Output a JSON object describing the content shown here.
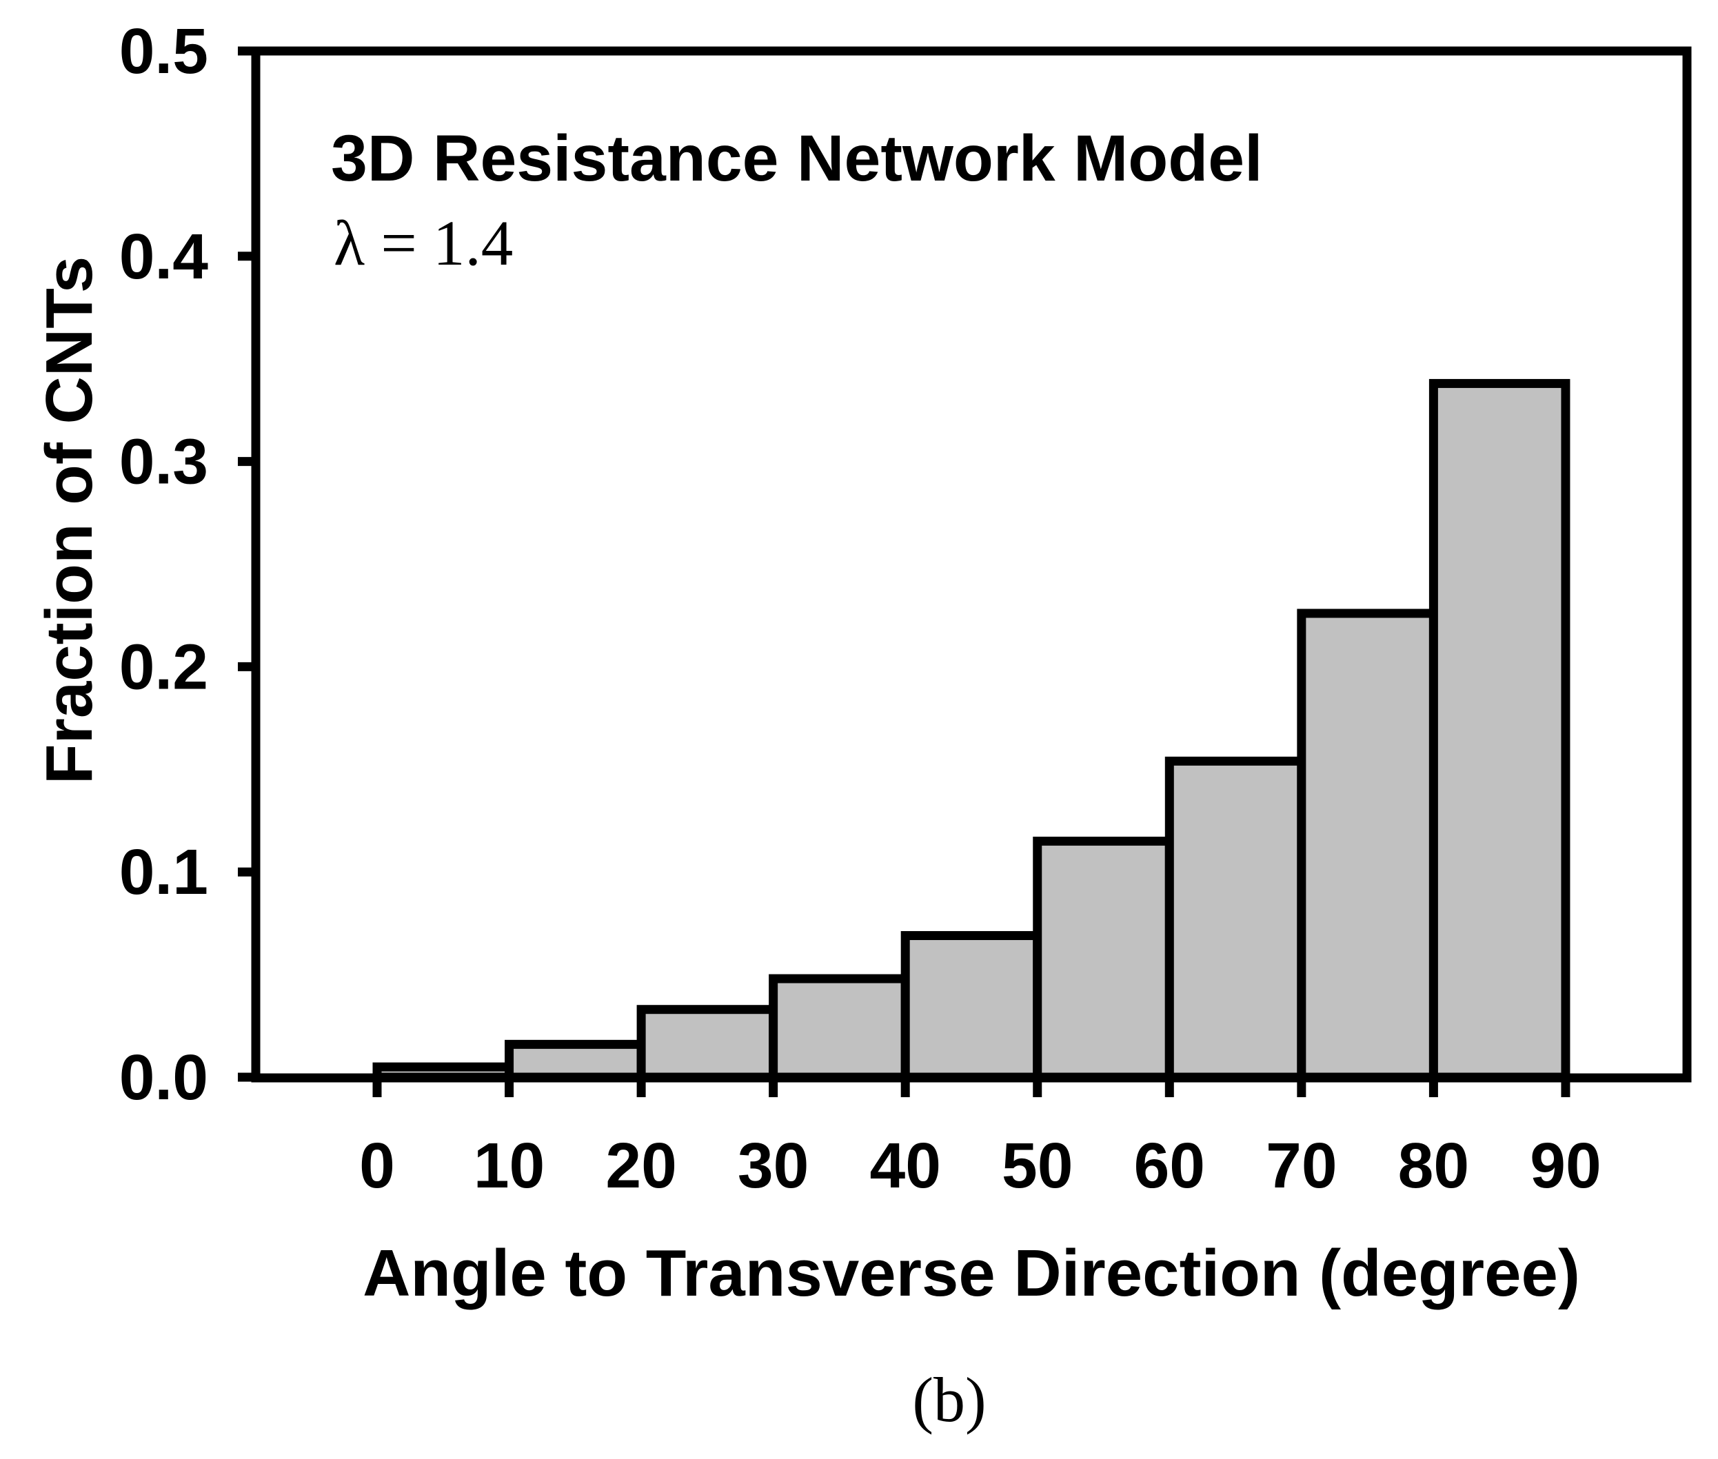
{
  "figure": {
    "caption": "(b)"
  },
  "chart_data": {
    "type": "bar",
    "subtype": "histogram",
    "title": "3D Resistance Network Model",
    "annotation": "λ = 1.4",
    "xlabel": "Angle to Transverse Direction (degree)",
    "ylabel": "Fraction of CNTs",
    "categories": [
      "0-10",
      "10-20",
      "20-30",
      "30-40",
      "40-50",
      "50-60",
      "60-70",
      "70-80",
      "80-90"
    ],
    "bin_edges_deg": [
      0,
      10,
      20,
      30,
      40,
      50,
      60,
      70,
      80,
      90
    ],
    "values": [
      0.005,
      0.016,
      0.033,
      0.048,
      0.069,
      0.115,
      0.154,
      0.226,
      0.338
    ],
    "x_ticks": [
      0,
      10,
      20,
      30,
      40,
      50,
      60,
      70,
      80,
      90
    ],
    "y_ticks": [
      "0.0",
      "0.1",
      "0.2",
      "0.3",
      "0.4",
      "0.5"
    ],
    "ylim": [
      0.0,
      0.5
    ],
    "grid": "off",
    "legend": "none",
    "colors": {
      "bar_fill": "#c1c1c1",
      "bar_stroke": "#000000",
      "axis": "#000000",
      "text": "#000000",
      "background": "#ffffff"
    }
  }
}
